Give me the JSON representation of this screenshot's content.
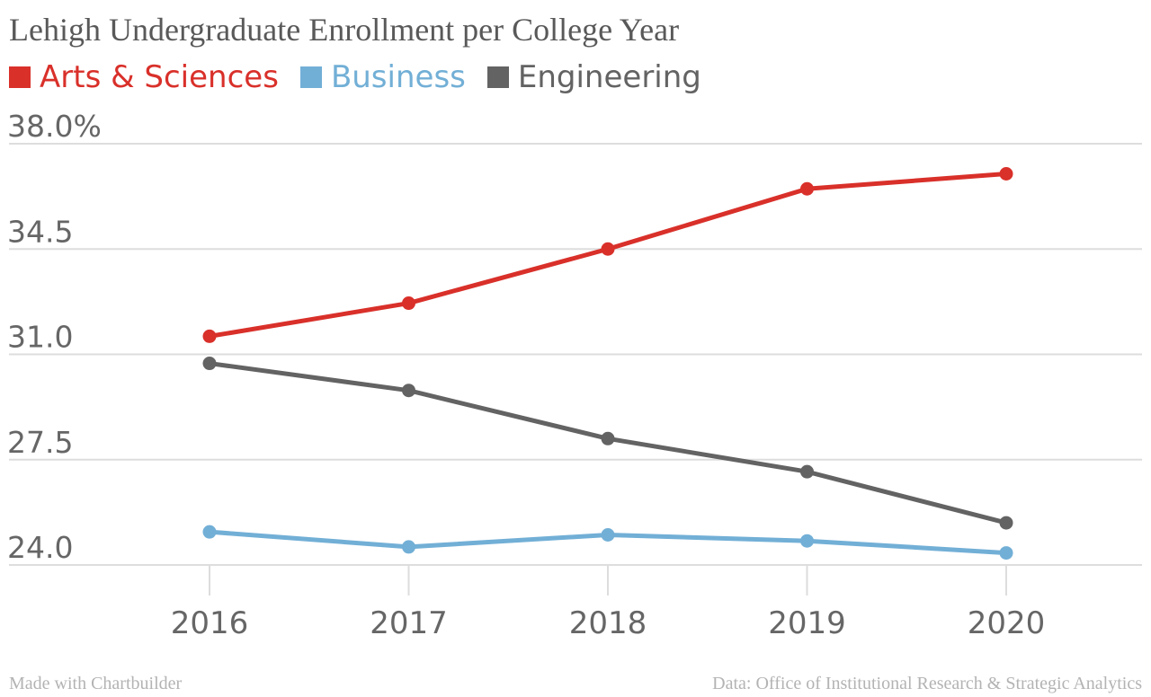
{
  "chart_data": {
    "type": "line",
    "title": "Lehigh Undergraduate Enrollment per College Year",
    "x": [
      "2016",
      "2017",
      "2018",
      "2019",
      "2020"
    ],
    "y_ticks": [
      "38.0%",
      "34.5",
      "31.0",
      "27.5",
      "24.0"
    ],
    "ylim": [
      24.0,
      38.0
    ],
    "grid": true,
    "legend_position": "top-left",
    "series": [
      {
        "name": "Arts & Sciences",
        "color": "#d9302a",
        "values": [
          31.6,
          32.7,
          34.5,
          36.5,
          37.0
        ]
      },
      {
        "name": "Business",
        "color": "#72afd6",
        "values": [
          25.1,
          24.6,
          25.0,
          24.8,
          24.4
        ]
      },
      {
        "name": "Engineering",
        "color": "#636363",
        "values": [
          30.7,
          29.8,
          28.2,
          27.1,
          25.4
        ]
      }
    ]
  },
  "footer": {
    "credit": "Made with Chartbuilder",
    "source": "Data: Office of Institutional Research & Strategic Analytics"
  }
}
